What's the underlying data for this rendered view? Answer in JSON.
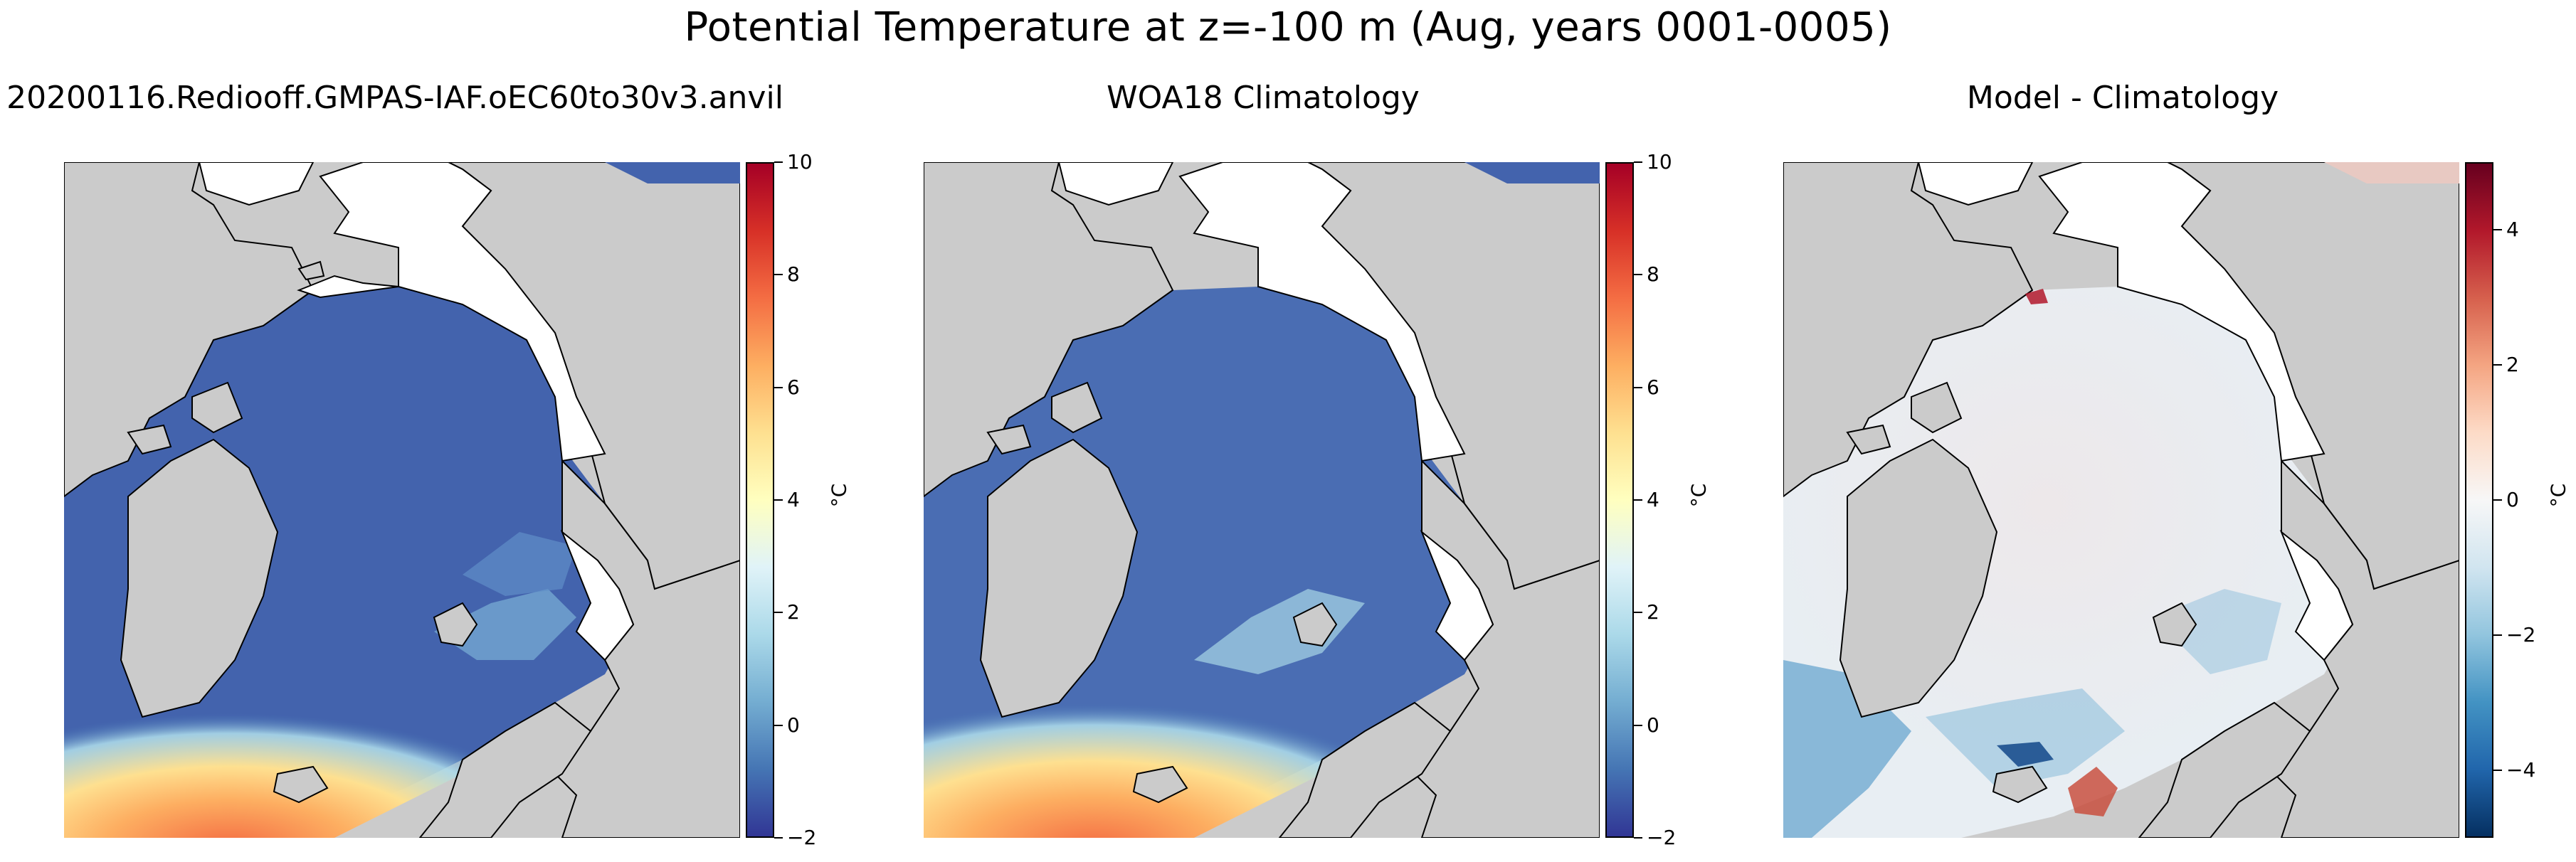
{
  "figure_title": "Potential Temperature at z=-100 m (Aug, years 0001-0005)",
  "panels": [
    {
      "title": "20200116.Rediooff.GMPAS-IAF.oEC60to30v3.anvil"
    },
    {
      "title": "WOA18 Climatology"
    },
    {
      "title": "Model - Climatology"
    }
  ],
  "chart_data": [
    {
      "type": "heatmap",
      "title": "20200116.Rediooff.GMPAS-IAF.oEC60to30v3.anvil",
      "colorbar": {
        "label": "°C",
        "range": [
          -2,
          10
        ],
        "ticks": [
          -2,
          0,
          2,
          4,
          6,
          8,
          10
        ],
        "tick_labels": [
          "−2",
          "0",
          "2",
          "4",
          "6",
          "8",
          "10"
        ],
        "colormap": "RdYlBu_r"
      }
    },
    {
      "type": "heatmap",
      "title": "WOA18 Climatology",
      "colorbar": {
        "label": "°C",
        "range": [
          -2,
          10
        ],
        "ticks": [
          -2,
          0,
          2,
          4,
          6,
          8,
          10
        ],
        "tick_labels": [
          "−2",
          "0",
          "2",
          "4",
          "6",
          "8",
          "10"
        ],
        "colormap": "RdYlBu_r"
      }
    },
    {
      "type": "heatmap",
      "title": "Model - Climatology",
      "colorbar": {
        "label": "°C",
        "range": [
          -5,
          5
        ],
        "ticks": [
          -4,
          -2,
          0,
          2,
          4
        ],
        "tick_labels": [
          "−4",
          "−2",
          "0",
          "2",
          "4"
        ],
        "colormap": "RdBu_r"
      }
    }
  ]
}
